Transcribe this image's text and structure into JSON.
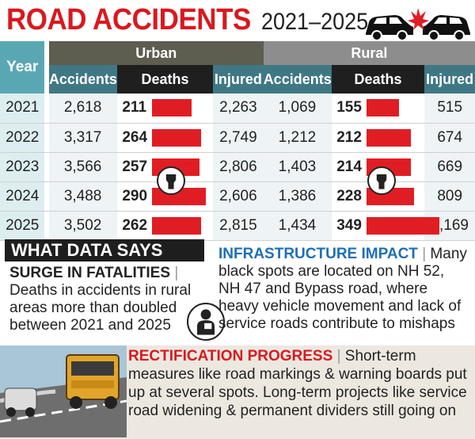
{
  "title": {
    "main": "ROAD ACCIDENTS",
    "years": "2021–2025"
  },
  "chart_data": {
    "type": "table",
    "row_header": "Year",
    "groups": [
      {
        "name": "Urban",
        "columns": [
          "Accidents",
          "Deaths",
          "Injured"
        ]
      },
      {
        "name": "Rural",
        "columns": [
          "Accidents",
          "Deaths",
          "Injured"
        ]
      }
    ],
    "rows": [
      {
        "year": "2021",
        "urban": {
          "accidents": "2,618",
          "deaths": 211,
          "injured": "2,263"
        },
        "rural": {
          "accidents": "1,069",
          "deaths": 155,
          "injured": "515"
        }
      },
      {
        "year": "2022",
        "urban": {
          "accidents": "3,317",
          "deaths": 264,
          "injured": "2,749"
        },
        "rural": {
          "accidents": "1,212",
          "deaths": 212,
          "injured": "674"
        }
      },
      {
        "year": "2023",
        "urban": {
          "accidents": "3,566",
          "deaths": 257,
          "injured": "2,806"
        },
        "rural": {
          "accidents": "1,403",
          "deaths": 214,
          "injured": "669"
        }
      },
      {
        "year": "2024",
        "urban": {
          "accidents": "3,488",
          "deaths": 290,
          "injured": "2,606"
        },
        "rural": {
          "accidents": "1,386",
          "deaths": 228,
          "injured": "809"
        }
      },
      {
        "year": "2025",
        "urban": {
          "accidents": "3,502",
          "deaths": 262,
          "injured": "2,815"
        },
        "rural": {
          "accidents": "1,434",
          "deaths": 349,
          "injured": "1,169"
        }
      }
    ],
    "bar_scale_max": 349
  },
  "what_data_says": {
    "heading": "WHAT DATA SAYS",
    "surge_title": "SURGE IN FATALITIES",
    "surge_text": "Deaths in accidents in rural areas more than doubled between 2021 and 2025"
  },
  "infrastructure": {
    "title": "INFRASTRUCTURE IMPACT",
    "text": "Many black spots are located on NH 52, NH 47 and Bypass road, where heavy vehicle movement and lack of service roads contribute to mishaps"
  },
  "rectification": {
    "title": "RECTIFICATION PROGRESS",
    "text": "Short-term measures like road markings & warning boards put up at several spots. Long-term projects like service road widening & permanent dividers still going on"
  },
  "colors": {
    "accent_red": "#d9191f",
    "bar_red": "#e11d24",
    "urban_header": "#5d5d50",
    "rural_header": "#8d8d8d",
    "teal": "#3f7884",
    "blue_heading": "#1e6fb5"
  },
  "icons": [
    "car-crash-icon",
    "fist-icon",
    "injured-person-icon",
    "road-scene-illustration"
  ]
}
